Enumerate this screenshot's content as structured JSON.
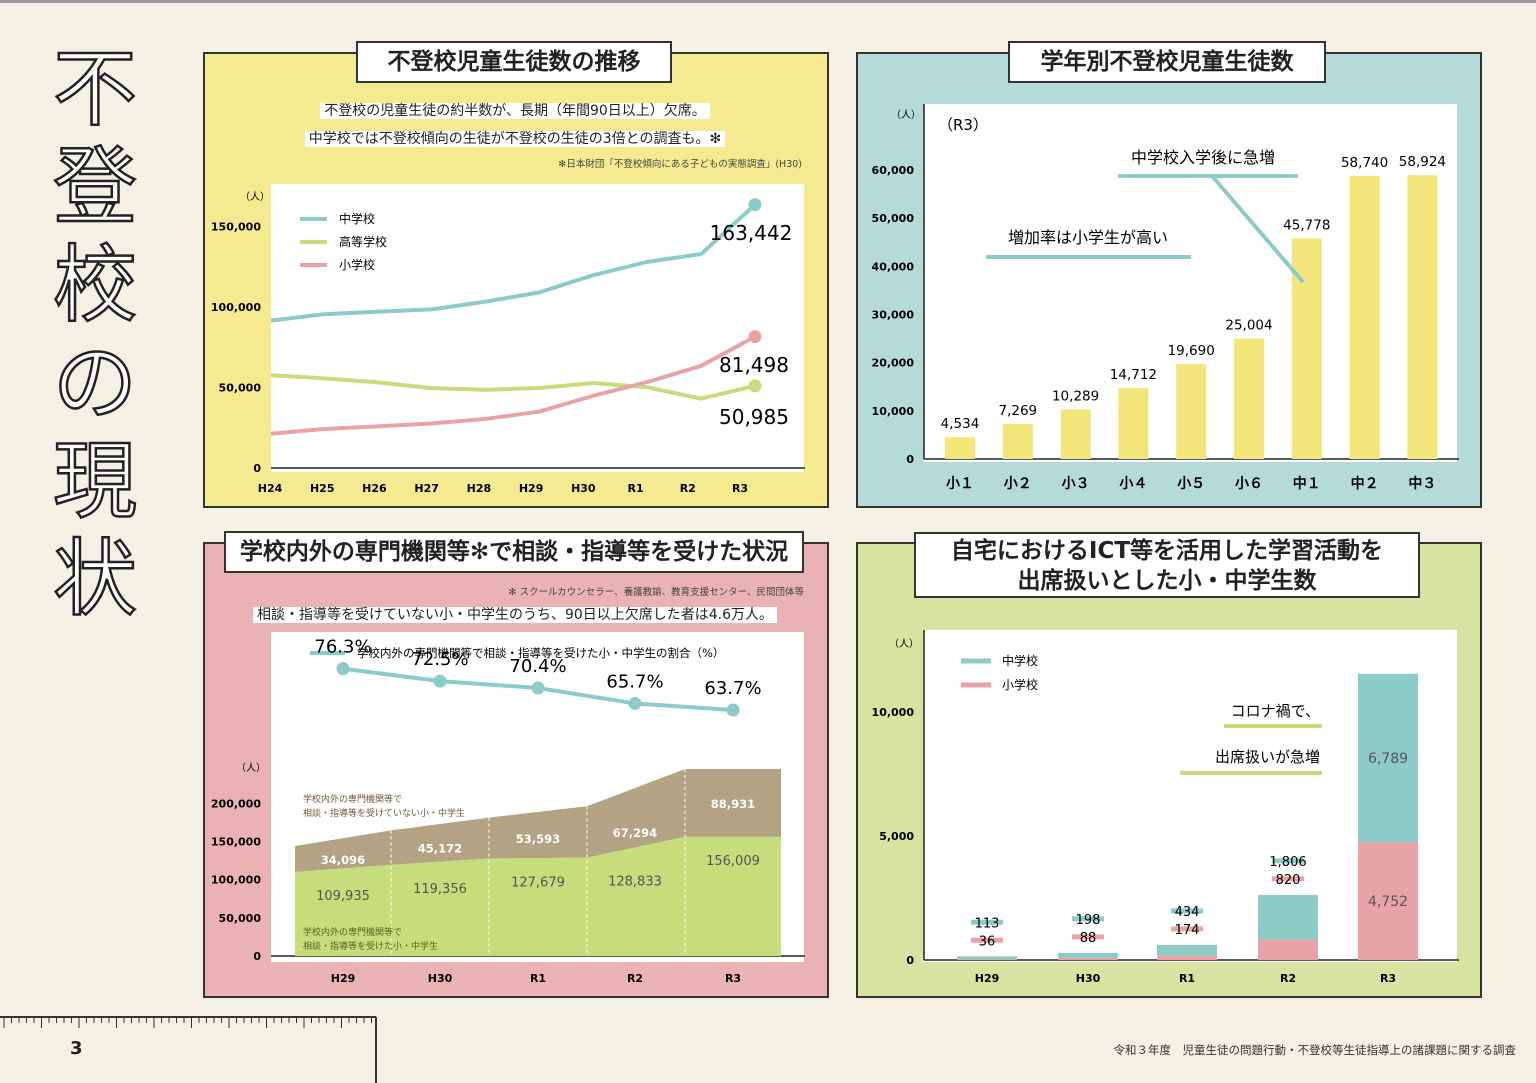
{
  "page": {
    "vertical_title": [
      "不",
      "登",
      "校",
      "の",
      "現",
      "状"
    ],
    "page_number": "3",
    "source": "令和３年度　児童生徒の問題行動・不登校等生徒指導上の諸課題に関する調査"
  },
  "colors": {
    "teal": "#8ccbc8",
    "green": "#c7dc7b",
    "pink": "#e9a3a6",
    "yellow": "#f2e57a",
    "brown": "#b3a283"
  },
  "panel1": {
    "title": "不登校児童生徒数の推移",
    "note1": "不登校の児童生徒の約半数が、長期（年間90日以上）欠席。",
    "note2": "中学校では不登校傾向の生徒が不登校の生徒の3倍との調査も。✻",
    "footnote": "✻日本財団「不登校傾向にある子どもの実態調査」(H30)",
    "unit": "（人）",
    "yticks": [
      "0",
      "50,000",
      "100,000",
      "150,000"
    ],
    "legend": [
      "中学校",
      "高等学校",
      "小学校"
    ],
    "end_labels": [
      "163,442",
      "50,985",
      "81,498"
    ]
  },
  "panel2": {
    "title": "学年別不登校児童生徒数",
    "unit": "（人）",
    "year": "（R3）",
    "yticks": [
      "0",
      "10,000",
      "20,000",
      "30,000",
      "40,000",
      "50,000",
      "60,000"
    ],
    "ann1": "中学校入学後に急増",
    "ann2": "増加率は小学生が高い"
  },
  "panel3": {
    "title": "学校内外の専門機関等✻で相談・指導等を受けた状況",
    "footnote": "✻ スクールカウンセラー、養護教諭、教育支援センター、民間団体等",
    "note": "相談・指導等を受けていない小・中学生のうち、90日以上欠席した者は4.6万人。",
    "legend": "学校内外の専門機関等で相談・指導等を受けた小・中学生の割合（%）",
    "unit": "（人）",
    "yticks": [
      "0",
      "50,000",
      "100,000",
      "150,000",
      "200,000"
    ],
    "rate_labels": [
      "76.3%",
      "72.5%",
      "70.4%",
      "65.7%",
      "63.7%"
    ],
    "not_received_labels": [
      "34,096",
      "45,172",
      "53,593",
      "67,294",
      "88,931"
    ],
    "received_labels": [
      "109,935",
      "119,356",
      "127,679",
      "128,833",
      "156,009"
    ],
    "area_label_top_1": "学校内外の専門機関等で",
    "area_label_top_2": "相談・指導等を受けていない小・中学生",
    "area_label_bottom_1": "学校内外の専門機関等で",
    "area_label_bottom_2": "相談・指導等を受けた小・中学生"
  },
  "panel4": {
    "title_line1": "自宅におけるICT等を活用した学習活動を",
    "title_line2": "出席扱いとした小・中学生数",
    "unit": "（人）",
    "yticks": [
      "0",
      "5,000",
      "10,000"
    ],
    "legend": [
      "中学校",
      "小学校"
    ],
    "ann1": "コロナ禍で、",
    "ann2": "出席扱いが急増",
    "jhs_labels": [
      "113",
      "198",
      "434",
      "1,806",
      "6,789"
    ],
    "es_labels": [
      "36",
      "88",
      "174",
      "820",
      "4,752"
    ]
  },
  "chart_data": [
    {
      "type": "line",
      "title": "不登校児童生徒数の推移",
      "ylabel": "（人）",
      "x": [
        "H24",
        "H25",
        "H26",
        "H27",
        "H28",
        "H29",
        "H30",
        "R1",
        "R2",
        "R3"
      ],
      "ylim": [
        0,
        175000
      ],
      "series": [
        {
          "name": "中学校",
          "values": [
            91446,
            95442,
            97033,
            98408,
            103235,
            108999,
            119687,
            127922,
            132777,
            163442
          ]
        },
        {
          "name": "高等学校",
          "values": [
            57664,
            55655,
            53156,
            49563,
            48565,
            49643,
            52723,
            50100,
            43051,
            50985
          ]
        },
        {
          "name": "小学校",
          "values": [
            21243,
            24175,
            25864,
            27583,
            30448,
            35032,
            44841,
            53350,
            63350,
            81498
          ]
        }
      ]
    },
    {
      "type": "bar",
      "title": "学年別不登校児童生徒数",
      "ylabel": "（人）",
      "categories": [
        "小１",
        "小２",
        "小３",
        "小４",
        "小５",
        "小６",
        "中１",
        "中２",
        "中３"
      ],
      "values": [
        4534,
        7269,
        10289,
        14712,
        19690,
        25004,
        45778,
        58740,
        58924
      ],
      "ylim": [
        0,
        65000
      ]
    },
    {
      "type": "area",
      "title": "学校内外の専門機関等で相談・指導等を受けた状況",
      "ylabel": "（人）",
      "x": [
        "H29",
        "H30",
        "R1",
        "R2",
        "R3"
      ],
      "ylim": [
        0,
        220000
      ],
      "series": [
        {
          "name": "学校内外の専門機関等で相談・指導等を受けた小・中学生",
          "values": [
            109935,
            119356,
            127679,
            128833,
            156009
          ]
        },
        {
          "name": "学校内外の専門機関等で相談・指導等を受けていない小・中学生",
          "values": [
            34096,
            45172,
            53593,
            67294,
            88931
          ]
        }
      ],
      "rate_series": {
        "name": "学校内外の専門機関等で相談・指導等を受けた小・中学生の割合（%）",
        "values": [
          76.3,
          72.5,
          70.4,
          65.7,
          63.7
        ]
      }
    },
    {
      "type": "bar",
      "title": "自宅におけるICT等を活用した学習活動を出席扱いとした小・中学生数",
      "ylabel": "（人）",
      "categories": [
        "H29",
        "H30",
        "R1",
        "R2",
        "R3"
      ],
      "stacked": true,
      "ylim": [
        0,
        13000
      ],
      "series": [
        {
          "name": "小学校",
          "values": [
            36,
            88,
            174,
            820,
            4752
          ]
        },
        {
          "name": "中学校",
          "values": [
            113,
            198,
            434,
            1806,
            6789
          ]
        }
      ]
    }
  ]
}
